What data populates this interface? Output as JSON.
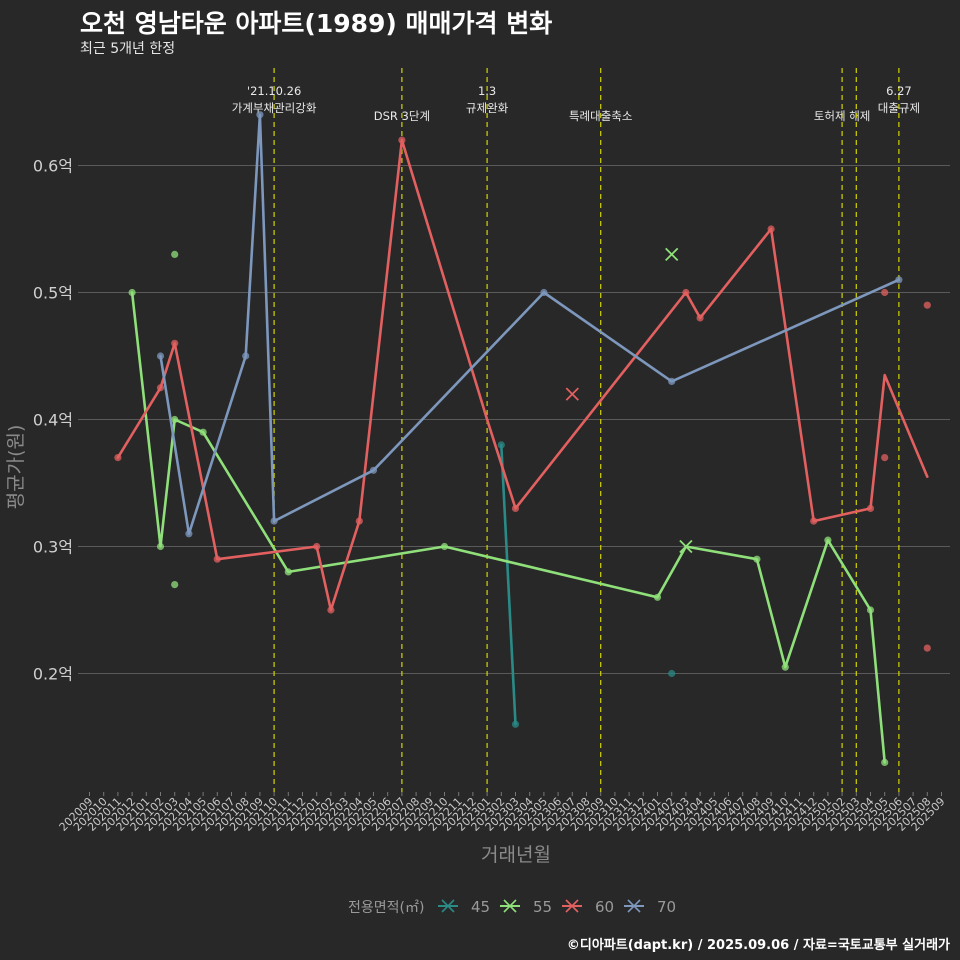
{
  "title": "오천 영남타운 아파트(1989) 매매가격 변화",
  "subtitle": "최근 5개년 한정",
  "footer": "©디아파트(dapt.kr) / 2025.09.06 / 자료=국토교통부 실거래가",
  "colors": {
    "background": "#282828",
    "grid": "#5a5a5a",
    "event_line": "#d4d400",
    "45": "#2a8a86",
    "55": "#8fe07a",
    "60": "#e36060",
    "70": "#7d97bd"
  },
  "chart_data": {
    "type": "line",
    "xlabel": "거래년월",
    "ylabel": "평균가(원)",
    "ylim": [
      0.1,
      0.7
    ],
    "yticks": [
      0.2,
      0.3,
      0.4,
      0.5,
      0.6
    ],
    "ytick_labels": [
      "0.2억",
      "0.3억",
      "0.4억",
      "0.5억",
      "0.6억"
    ],
    "categories": [
      "202009",
      "202010",
      "202011",
      "202012",
      "202101",
      "202102",
      "202103",
      "202104",
      "202105",
      "202106",
      "202107",
      "202108",
      "202109",
      "202110",
      "202111",
      "202112",
      "202201",
      "202202",
      "202203",
      "202204",
      "202205",
      "202206",
      "202207",
      "202208",
      "202209",
      "202210",
      "202211",
      "202212",
      "202301",
      "202302",
      "202303",
      "202304",
      "202305",
      "202306",
      "202307",
      "202308",
      "202309",
      "202310",
      "202311",
      "202312",
      "202401",
      "202402",
      "202403",
      "202404",
      "202405",
      "202406",
      "202407",
      "202408",
      "202409",
      "202410",
      "202411",
      "202412",
      "202501",
      "202502",
      "202503",
      "202504",
      "202505",
      "202506",
      "202507",
      "202508",
      "202509"
    ],
    "legend_title": "전용면적(㎡)",
    "legend_position": "bottom",
    "grid": true,
    "events": [
      {
        "x": "202110",
        "label": "'21.10.26\n가계부채관리강화"
      },
      {
        "x": "202207",
        "label": "DSR 3단계"
      },
      {
        "x": "202301",
        "label": "1.3\n규제완화"
      },
      {
        "x": "202309",
        "label": "특례대출축소"
      },
      {
        "x": "202502",
        "label": "토허제 해제"
      },
      {
        "x": "202503",
        "label": ""
      },
      {
        "x": "202506",
        "label": "6.27\n대출규제"
      }
    ],
    "series": [
      {
        "name": "45",
        "line": [
          [
            "202302",
            0.38
          ],
          [
            "202303",
            0.16
          ]
        ],
        "points": [
          [
            "202302",
            0.38
          ],
          [
            "202303",
            0.16
          ],
          [
            "202402",
            0.2
          ]
        ],
        "cross": []
      },
      {
        "name": "55",
        "line": [
          [
            "202012",
            0.5
          ],
          [
            "202102",
            0.3
          ],
          [
            "202103",
            0.4
          ],
          [
            "202105",
            0.39
          ],
          [
            "202111",
            0.28
          ],
          [
            "202210",
            0.3
          ],
          [
            "202401",
            0.26
          ],
          [
            "202403",
            0.3
          ],
          [
            "202408",
            0.29
          ],
          [
            "202410",
            0.205
          ],
          [
            "202501",
            0.305
          ],
          [
            "202504",
            0.25
          ],
          [
            "202505",
            0.13
          ]
        ],
        "points": [
          [
            "202012",
            0.5
          ],
          [
            "202102",
            0.3
          ],
          [
            "202103",
            0.4
          ],
          [
            "202103",
            0.53
          ],
          [
            "202103",
            0.27
          ],
          [
            "202105",
            0.39
          ],
          [
            "202111",
            0.28
          ],
          [
            "202210",
            0.3
          ],
          [
            "202401",
            0.26
          ],
          [
            "202408",
            0.29
          ],
          [
            "202410",
            0.205
          ],
          [
            "202501",
            0.305
          ],
          [
            "202504",
            0.25
          ],
          [
            "202505",
            0.13
          ]
        ],
        "cross": [
          [
            "202402",
            0.53
          ],
          [
            "202403",
            0.3
          ]
        ]
      },
      {
        "name": "60",
        "line": [
          [
            "202011",
            0.37
          ],
          [
            "202102",
            0.425
          ],
          [
            "202103",
            0.46
          ],
          [
            "202106",
            0.29
          ],
          [
            "202201",
            0.3
          ],
          [
            "202202",
            0.25
          ],
          [
            "202204",
            0.32
          ],
          [
            "202207",
            0.62
          ],
          [
            "202301",
            0.4
          ],
          [
            "202303",
            0.33
          ],
          [
            "202403",
            0.5
          ],
          [
            "202404",
            0.48
          ],
          [
            "202409",
            0.55
          ],
          [
            "202412",
            0.32
          ],
          [
            "202504",
            0.33
          ],
          [
            "202505",
            0.435
          ],
          [
            "202508",
            0.355
          ]
        ],
        "points": [
          [
            "202011",
            0.37
          ],
          [
            "202102",
            0.425
          ],
          [
            "202103",
            0.46
          ],
          [
            "202106",
            0.29
          ],
          [
            "202201",
            0.3
          ],
          [
            "202202",
            0.25
          ],
          [
            "202204",
            0.32
          ],
          [
            "202207",
            0.62
          ],
          [
            "202303",
            0.33
          ],
          [
            "202403",
            0.5
          ],
          [
            "202404",
            0.48
          ],
          [
            "202409",
            0.55
          ],
          [
            "202412",
            0.32
          ],
          [
            "202504",
            0.33
          ],
          [
            "202505",
            0.5
          ],
          [
            "202505",
            0.37
          ],
          [
            "202508",
            0.49
          ],
          [
            "202508",
            0.22
          ]
        ],
        "cross": [
          [
            "202307",
            0.42
          ]
        ]
      },
      {
        "name": "70",
        "line": [
          [
            "202102",
            0.45
          ],
          [
            "202104",
            0.31
          ],
          [
            "202108",
            0.45
          ],
          [
            "202109",
            0.64
          ],
          [
            "202110",
            0.32
          ],
          [
            "202205",
            0.36
          ],
          [
            "202305",
            0.5
          ],
          [
            "202402",
            0.43
          ],
          [
            "202506",
            0.51
          ]
        ],
        "points": [
          [
            "202102",
            0.45
          ],
          [
            "202104",
            0.31
          ],
          [
            "202108",
            0.45
          ],
          [
            "202109",
            0.64
          ],
          [
            "202110",
            0.32
          ],
          [
            "202205",
            0.36
          ],
          [
            "202305",
            0.5
          ],
          [
            "202402",
            0.43
          ],
          [
            "202506",
            0.51
          ]
        ],
        "cross": []
      }
    ]
  }
}
